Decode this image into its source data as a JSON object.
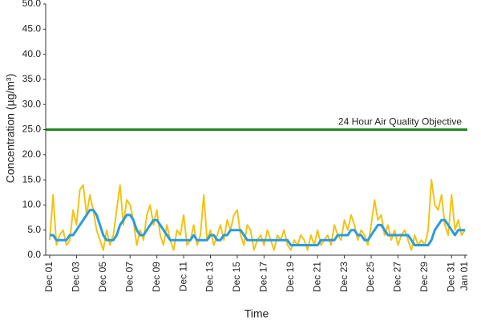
{
  "chart_data": {
    "type": "line",
    "y_label": "Concentration (µg/m³)",
    "x_label": "Time",
    "categories": [
      "Dec 01",
      null,
      null,
      null,
      null,
      null,
      null,
      null,
      "Dec 03",
      null,
      null,
      null,
      null,
      null,
      null,
      null,
      "Dec 05",
      null,
      null,
      null,
      null,
      null,
      null,
      null,
      "Dec 07",
      null,
      null,
      null,
      null,
      null,
      null,
      null,
      "Dec 09",
      null,
      null,
      null,
      null,
      null,
      null,
      null,
      "Dec 11",
      null,
      null,
      null,
      null,
      null,
      null,
      null,
      "Dec 13",
      null,
      null,
      null,
      null,
      null,
      null,
      null,
      "Dec 15",
      null,
      null,
      null,
      null,
      null,
      null,
      null,
      "Dec 17",
      null,
      null,
      null,
      null,
      null,
      null,
      null,
      "Dec 19",
      null,
      null,
      null,
      null,
      null,
      null,
      null,
      "Dec 21",
      null,
      null,
      null,
      null,
      null,
      null,
      null,
      "Dec 23",
      null,
      null,
      null,
      null,
      null,
      null,
      null,
      "Dec 25",
      null,
      null,
      null,
      null,
      null,
      null,
      null,
      "Dec 27",
      null,
      null,
      null,
      null,
      null,
      null,
      null,
      "Dec 29",
      null,
      null,
      null,
      null,
      null,
      null,
      null,
      "Dec 31",
      null,
      null,
      null,
      "Jan 01"
    ],
    "series": [
      {
        "color": "#f2c314",
        "width": 2,
        "values": [
          3,
          12,
          2,
          4,
          5,
          2,
          3,
          9,
          6,
          13,
          14,
          8,
          12,
          9,
          5,
          3,
          1,
          5,
          2,
          4,
          9,
          14,
          6,
          11,
          10,
          7,
          2,
          5,
          3,
          8,
          10,
          6,
          9,
          4,
          2,
          6,
          3,
          1,
          5,
          4,
          8,
          2,
          3,
          6,
          2,
          4,
          12,
          3,
          5,
          2,
          4,
          6,
          3,
          7,
          5,
          8,
          9,
          4,
          2,
          6,
          5,
          1,
          3,
          4,
          2,
          5,
          3,
          1,
          4,
          3,
          5,
          2,
          1,
          3,
          2,
          4,
          3,
          1,
          4,
          2,
          5,
          2,
          3,
          4,
          2,
          6,
          4,
          3,
          7,
          5,
          8,
          6,
          3,
          5,
          4,
          2,
          6,
          11,
          7,
          8,
          4,
          6,
          3,
          5,
          2,
          4,
          5,
          3,
          1,
          4,
          2,
          3,
          2,
          5,
          15,
          10,
          9,
          12,
          6,
          4,
          12,
          5,
          7,
          4,
          5
        ]
      },
      {
        "color": "#2a9be0",
        "width": 3,
        "values": [
          4,
          4,
          3,
          3,
          3,
          3,
          4,
          4,
          5,
          6,
          7,
          8,
          9,
          9,
          8,
          6,
          4,
          3,
          3,
          3,
          4,
          6,
          7,
          8,
          8,
          7,
          5,
          4,
          4,
          5,
          6,
          7,
          7,
          6,
          5,
          4,
          3,
          3,
          3,
          3,
          3,
          3,
          3,
          4,
          3,
          3,
          3,
          3,
          4,
          4,
          3,
          3,
          4,
          4,
          5,
          5,
          5,
          5,
          4,
          3,
          3,
          3,
          3,
          3,
          3,
          3,
          3,
          3,
          3,
          3,
          3,
          3,
          2,
          2,
          2,
          2,
          2,
          2,
          2,
          2,
          2,
          3,
          3,
          3,
          3,
          3,
          4,
          4,
          4,
          4,
          5,
          5,
          4,
          4,
          3,
          3,
          4,
          5,
          6,
          6,
          5,
          4,
          4,
          4,
          4,
          4,
          4,
          4,
          3,
          2,
          2,
          2,
          2,
          2,
          3,
          5,
          6,
          7,
          7,
          6,
          5,
          4,
          5,
          5,
          5
        ]
      }
    ],
    "threshold": {
      "value": 25,
      "label": "24 Hour Air Quality Objective",
      "color": "#1f8a1f"
    },
    "ylim": [
      0,
      50
    ],
    "yticks": [
      {
        "value": 0,
        "label": "0.0"
      },
      {
        "value": 5,
        "label": "5.0"
      },
      {
        "value": 10,
        "label": "10.0"
      },
      {
        "value": 15,
        "label": "15.0"
      },
      {
        "value": 20,
        "label": "20.0"
      },
      {
        "value": 25,
        "label": "25.0"
      },
      {
        "value": 30,
        "label": "30.0"
      },
      {
        "value": 35,
        "label": "35.0"
      },
      {
        "value": 40,
        "label": "40.0"
      },
      {
        "value": 45,
        "label": "45.0"
      },
      {
        "value": 50,
        "label": "50.0"
      }
    ],
    "grid": false
  }
}
